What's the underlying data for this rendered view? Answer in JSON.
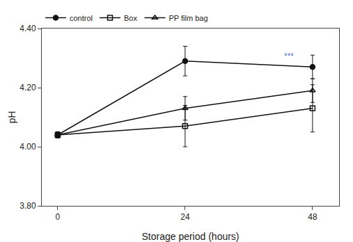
{
  "chart_data": {
    "type": "line",
    "x": [
      0,
      24,
      48
    ],
    "series": [
      {
        "name": "control",
        "color": "#111111",
        "marker": "circle",
        "line_style": "solid",
        "values": [
          4.04,
          4.29,
          4.27
        ],
        "yerr": [
          0.01,
          0.05,
          0.04
        ]
      },
      {
        "name": "Box",
        "color": "#111111",
        "marker": "square-open",
        "line_style": "solid",
        "values": [
          4.04,
          4.07,
          4.13
        ],
        "yerr": [
          0.01,
          0.07,
          0.08
        ]
      },
      {
        "name": "PP film bag",
        "color": "#111111",
        "marker": "triangle-up-open",
        "line_style": "solid",
        "values": [
          4.04,
          4.13,
          4.19
        ],
        "yerr": [
          0.01,
          0.04,
          0.04
        ]
      }
    ],
    "xlabel": "Storage period (hours)",
    "ylabel": "pH",
    "xlim": [
      -3,
      53
    ],
    "ylim": [
      3.8,
      4.4
    ],
    "xticks": [
      0,
      24,
      48
    ],
    "yticks": [
      {
        "value": 3.8,
        "label": "3.80"
      },
      {
        "value": 4.0,
        "label": "4.00"
      },
      {
        "value": 4.2,
        "label": "4.20"
      },
      {
        "value": 4.4,
        "label": "4.40"
      }
    ],
    "grid": false,
    "legend": "upper left",
    "annotations": [
      {
        "text": "***",
        "x": 43.5,
        "y": 4.285,
        "color": "#5577cc"
      }
    ]
  }
}
